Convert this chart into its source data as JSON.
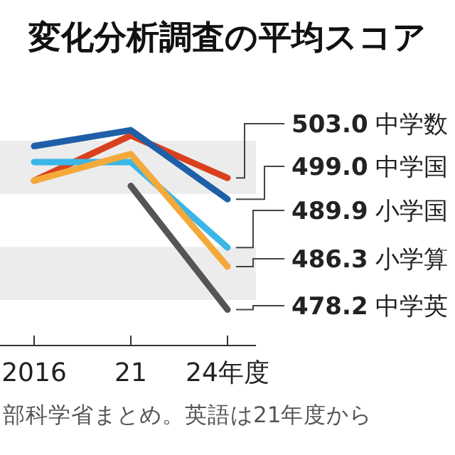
{
  "chart_data": {
    "type": "line",
    "title": "変化分析調査の平均スコア",
    "categories": [
      "2016",
      "21",
      "24年度"
    ],
    "tick_labels": "x",
    "series": [
      {
        "name": "中学数",
        "color": "#d9411e",
        "values": [
          502.5,
          511,
          503.0
        ],
        "value_labels": [
          null,
          null,
          "503.0"
        ]
      },
      {
        "name": "中学国",
        "color": "#1f5fa8",
        "values": [
          509,
          512,
          499.0
        ],
        "value_labels": [
          null,
          null,
          "499.0"
        ]
      },
      {
        "name": "小学国",
        "color": "#3bb6e6",
        "values": [
          506,
          506,
          489.9
        ],
        "value_labels": [
          null,
          null,
          "489.9"
        ]
      },
      {
        "name": "小学算",
        "color": "#f4a93b",
        "values": [
          502.5,
          507.5,
          486.3
        ],
        "value_labels": [
          null,
          null,
          "486.3"
        ]
      },
      {
        "name": "中学英",
        "color": "#555555",
        "values": [
          null,
          501.5,
          478.2
        ],
        "value_labels": [
          null,
          null,
          "478.2"
        ]
      }
    ],
    "bands": [
      {
        "axis": "y",
        "from": 500,
        "to": 510,
        "color": "#ececec"
      },
      {
        "axis": "y",
        "from": 480,
        "to": 490,
        "color": "#ececec"
      }
    ],
    "annotations": [
      "部科学省まとめ。英語は21年度から"
    ]
  }
}
